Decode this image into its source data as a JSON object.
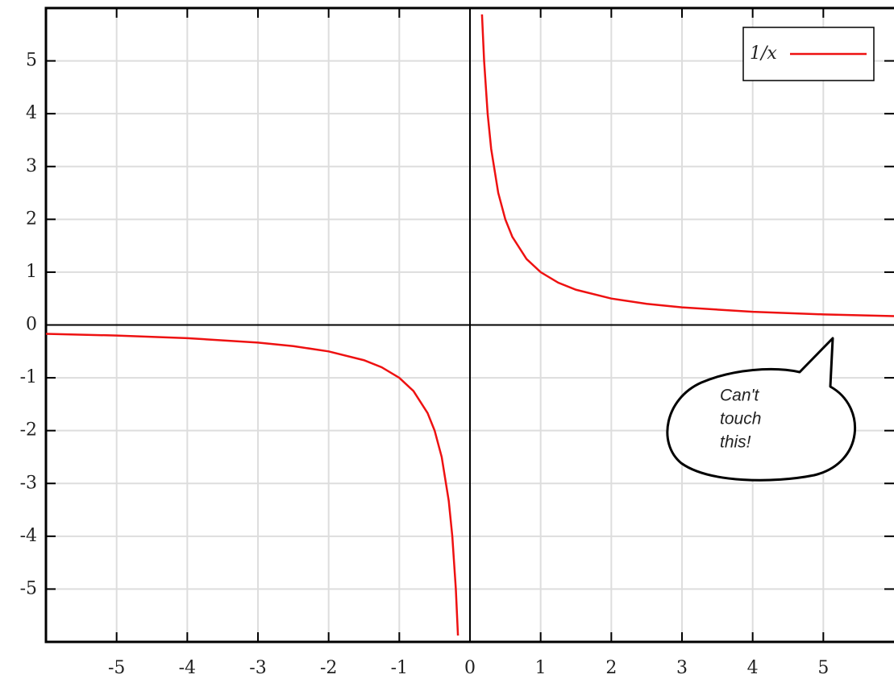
{
  "chart_data": {
    "type": "line",
    "x": [
      -6,
      -5,
      -4,
      -3,
      -2.5,
      -2,
      -1.5,
      -1.25,
      -1,
      -0.8,
      -0.6,
      -0.5,
      -0.4,
      -0.3,
      -0.25,
      -0.2,
      -0.17,
      0,
      0.17,
      0.2,
      0.25,
      0.3,
      0.4,
      0.5,
      0.6,
      0.8,
      1,
      1.25,
      1.5,
      2,
      2.5,
      3,
      4,
      5,
      6
    ],
    "series": [
      {
        "name": "1/x",
        "color": "#ee1111",
        "values": [
          -0.167,
          -0.2,
          -0.25,
          -0.333,
          -0.4,
          -0.5,
          -0.667,
          -0.8,
          -1,
          -1.25,
          -1.667,
          -2,
          -2.5,
          -3.333,
          -4,
          -5,
          -5.88,
          null,
          5.88,
          5,
          4,
          3.333,
          2.5,
          2,
          1.667,
          1.25,
          1,
          0.8,
          0.667,
          0.5,
          0.4,
          0.333,
          0.25,
          0.2,
          0.167
        ]
      }
    ],
    "xlim": [
      -6,
      6
    ],
    "ylim": [
      -6,
      6
    ],
    "xticks": [
      -5,
      -4,
      -3,
      -2,
      -1,
      0,
      1,
      2,
      3,
      4,
      5
    ],
    "yticks": [
      -5,
      -4,
      -3,
      -2,
      -1,
      0,
      1,
      2,
      3,
      4,
      5
    ],
    "grid": true,
    "legend": "upper right",
    "annotation": [
      "Can't",
      "touch",
      "this!"
    ]
  }
}
